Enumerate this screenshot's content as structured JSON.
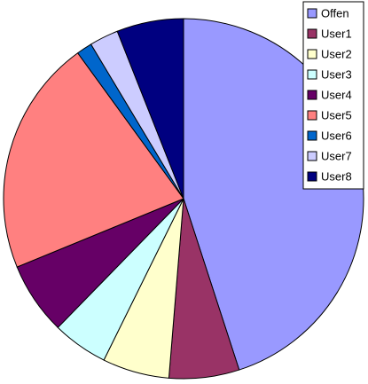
{
  "chart_data": {
    "type": "pie",
    "start_angle": 0,
    "direction": "clockwise",
    "legend": "top-right",
    "categories": [
      "Offen",
      "User1",
      "User2",
      "User3",
      "User4",
      "User5",
      "User6",
      "User7",
      "User8"
    ],
    "values": [
      45,
      6.3,
      6,
      5,
      6.5,
      21.2,
      1.4,
      2.6,
      6
    ],
    "colors": [
      "#9999ff",
      "#993366",
      "#ffffcc",
      "#ccffff",
      "#660066",
      "#ff8080",
      "#0066cc",
      "#ccccff",
      "#000080"
    ]
  }
}
